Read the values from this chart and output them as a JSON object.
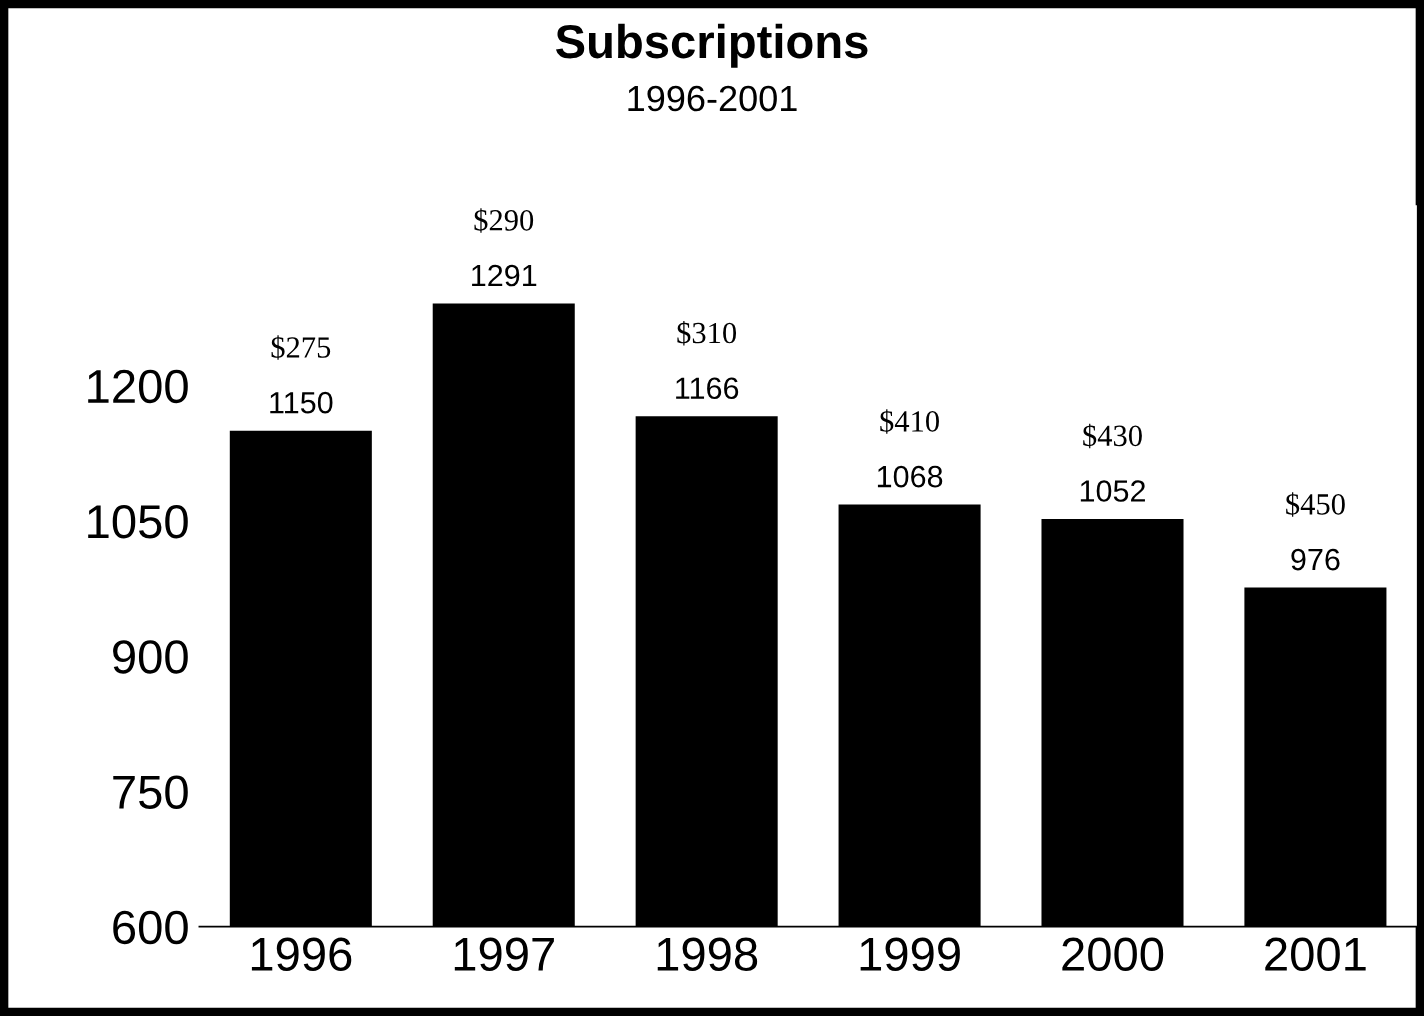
{
  "chart_data": {
    "type": "bar",
    "title": "Subscriptions",
    "subtitle": "1996-2001",
    "categories": [
      "1996",
      "1997",
      "1998",
      "1999",
      "2000",
      "2001"
    ],
    "values": [
      1150,
      1291,
      1166,
      1068,
      1052,
      976
    ],
    "data_labels": true,
    "annotations": [
      {
        "text": "$275",
        "x": "1996",
        "y": 1150
      },
      {
        "text": "$290",
        "x": "1997",
        "y": 1291
      },
      {
        "text": "$310",
        "x": "1998",
        "y": 1166
      },
      {
        "text": "$410",
        "x": "1999",
        "y": 1068
      },
      {
        "text": "$430",
        "x": "2000",
        "y": 1052
      },
      {
        "text": "$450",
        "x": "2001",
        "y": 976
      }
    ],
    "color": "#000000",
    "ylim": [
      600,
      1400
    ],
    "yticks": [
      600,
      750,
      900,
      1050,
      1200
    ],
    "grid": false
  }
}
